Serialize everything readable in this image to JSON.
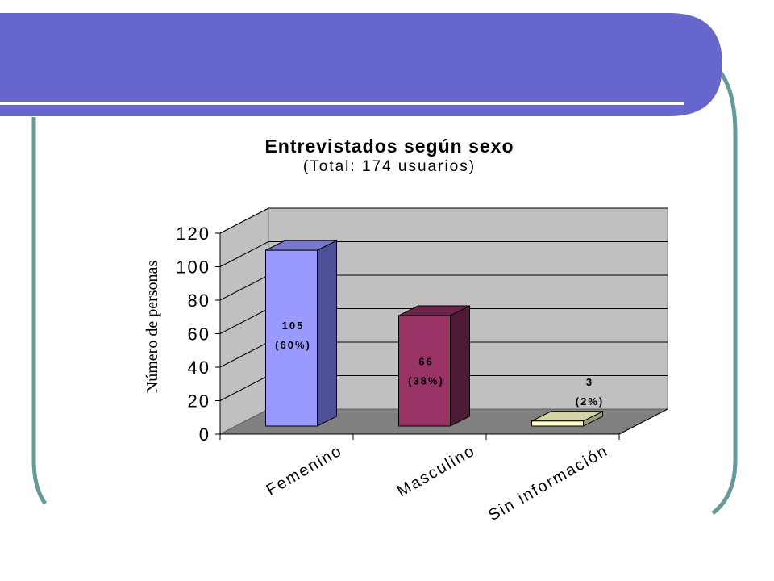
{
  "colors": {
    "banner": "#6666cc",
    "frame": "#669999",
    "wall": "#c0c0c0",
    "floor": "#808080",
    "gridline": "#000000"
  },
  "chart_data": {
    "type": "bar",
    "title": "Entrevistados según sexo",
    "subtitle": "(Total: 174 usuarios)",
    "ylabel": "Número de personas",
    "xlabel": "",
    "ylim": [
      0,
      120
    ],
    "yticks": [
      0,
      20,
      40,
      60,
      80,
      100,
      120
    ],
    "categories": [
      "Femenino",
      "Masculino",
      "Sin información"
    ],
    "values": [
      105,
      66,
      3
    ],
    "data_labels": [
      {
        "value": "105",
        "percent": "(60%)"
      },
      {
        "value": "66",
        "percent": "(38%)"
      },
      {
        "value": "3",
        "percent": "(2%)"
      }
    ],
    "bar_colors": [
      {
        "front": "#9999ff",
        "side": "#4e4e99",
        "top": "#7777cc"
      },
      {
        "front": "#993366",
        "side": "#4f1a35",
        "top": "#6b2447"
      },
      {
        "front": "#ffffcc",
        "side": "#9e9e78",
        "top": "#d4d4a8"
      }
    ],
    "grid": true,
    "legend": "none"
  }
}
